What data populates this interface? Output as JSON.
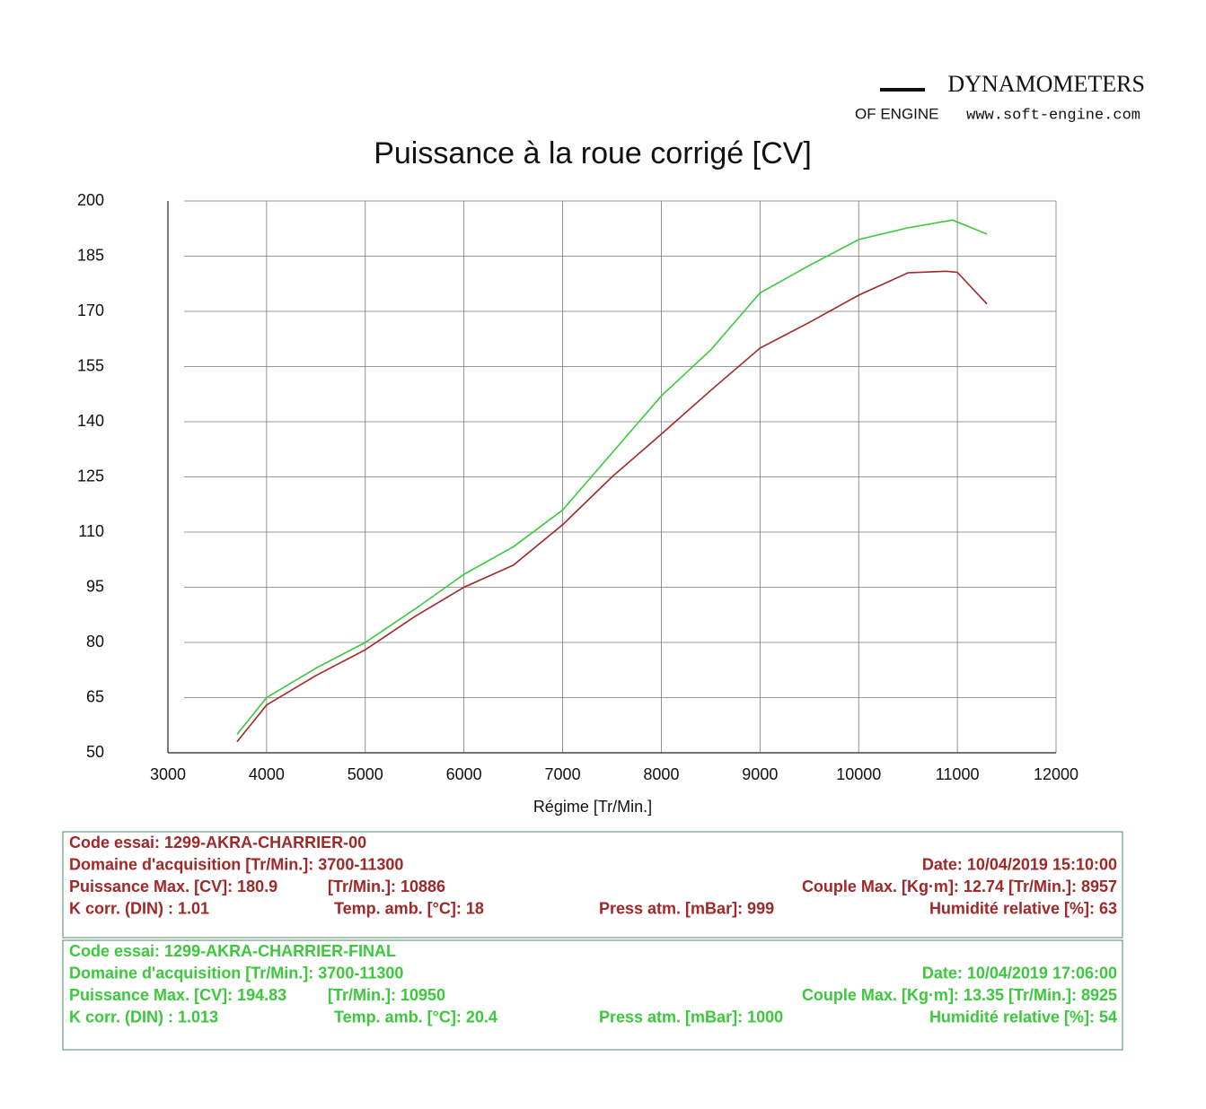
{
  "header": {
    "brand": "DYNAMOMETERS",
    "logo": "OF ENGINE",
    "url": "www.soft-engine.com"
  },
  "chart_data": {
    "type": "line",
    "title": "Puissance à la roue corrigé [CV]",
    "x_label": "Régime [Tr/Min.]",
    "xlim": [
      3000,
      12000
    ],
    "xticks": [
      3000,
      4000,
      5000,
      6000,
      7000,
      8000,
      9000,
      10000,
      11000,
      12000
    ],
    "ylim": [
      50,
      200
    ],
    "yticks": [
      200,
      185,
      170,
      155,
      140,
      125,
      110,
      95,
      80,
      65,
      50
    ],
    "grid": true,
    "series": [
      {
        "name": "1299-AKRA-CHARRIER-00",
        "color": "#a02828",
        "x": [
          3700,
          4000,
          4500,
          5000,
          5500,
          6000,
          6500,
          7000,
          7500,
          8000,
          8500,
          9000,
          9500,
          10000,
          10500,
          10886,
          11000,
          11300
        ],
        "values": [
          53,
          63,
          71,
          78,
          87,
          95,
          101,
          112,
          125,
          136.6,
          148.5,
          160,
          167,
          174.4,
          180.5,
          180.9,
          180.6,
          172
        ]
      },
      {
        "name": "1299-AKRA-CHARRIER-FINAL",
        "color": "#3cc83c",
        "x": [
          3700,
          4000,
          4500,
          5000,
          5500,
          6000,
          6500,
          7000,
          7500,
          8000,
          8500,
          9000,
          9500,
          10000,
          10500,
          10950,
          11300
        ],
        "values": [
          55,
          65,
          73,
          80,
          89,
          98.5,
          106,
          116,
          131.5,
          147,
          159.5,
          175,
          182.5,
          189.5,
          192.7,
          194.83,
          191
        ]
      }
    ]
  },
  "tests": [
    {
      "color": "#a02828",
      "rows": [
        [
          "Code essai: 1299-AKRA-CHARRIER-00"
        ],
        [
          "Domaine d'acquisition [Tr/Min.]: 3700-11300",
          "Date: 10/04/2019   15:10:00"
        ],
        [
          "Puissance Max. [CV]: 180.9",
          "[Tr/Min.]: 10886",
          "Couple Max. [Kg·m]: 12.74   [Tr/Min.]: 8957"
        ],
        [
          "K corr. (DIN) : 1.01",
          "Temp. amb. [°C]: 18",
          "Press atm. [mBar]: 999",
          "Humidité relative [%]: 63"
        ]
      ]
    },
    {
      "color": "#3cc83c",
      "rows": [
        [
          "Code essai: 1299-AKRA-CHARRIER-FINAL"
        ],
        [
          "Domaine d'acquisition [Tr/Min.]: 3700-11300",
          "Date: 10/04/2019   17:06:00"
        ],
        [
          "Puissance Max. [CV]: 194.83",
          "[Tr/Min.]: 10950",
          "Couple Max. [Kg·m]: 13.35   [Tr/Min.]: 8925"
        ],
        [
          "K corr. (DIN) : 1.013",
          "Temp. amb. [°C]: 20.4",
          "Press atm. [mBar]: 1000",
          "Humidité relative [%]: 54"
        ]
      ]
    }
  ]
}
